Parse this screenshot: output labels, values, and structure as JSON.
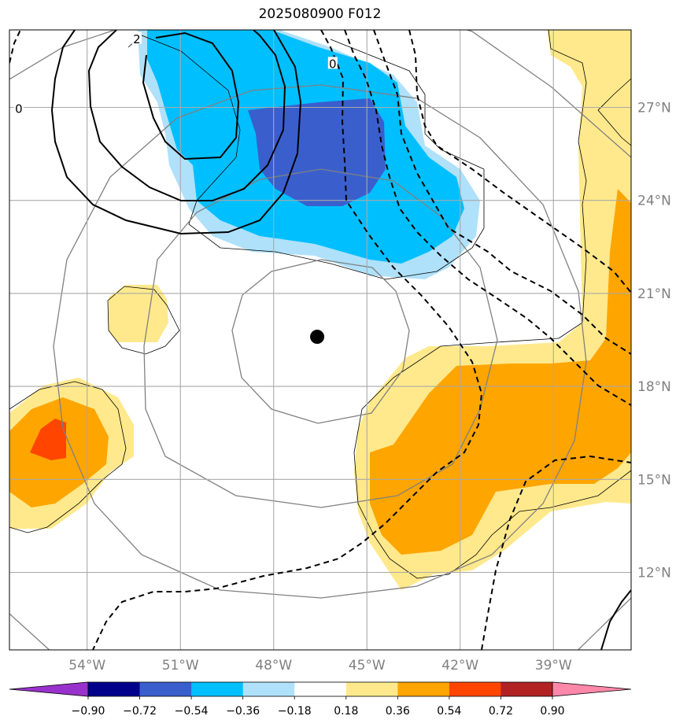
{
  "title": "2025080900 F012",
  "map": {
    "lon_range": [
      -56.5,
      -36.5
    ],
    "lat_range": [
      9.5,
      29.5
    ],
    "lon_ticks": [
      {
        "value": -54,
        "label": "54°W"
      },
      {
        "value": -51,
        "label": "51°W"
      },
      {
        "value": -48,
        "label": "48°W"
      },
      {
        "value": -45,
        "label": "45°W"
      },
      {
        "value": -42,
        "label": "42°W"
      },
      {
        "value": -39,
        "label": "39°W"
      }
    ],
    "lat_ticks": [
      {
        "value": 27,
        "label": "27°N"
      },
      {
        "value": 24,
        "label": "24°N"
      },
      {
        "value": 21,
        "label": "21°N"
      },
      {
        "value": 18,
        "label": "18°N"
      },
      {
        "value": 15,
        "label": "15°N"
      },
      {
        "value": 12,
        "label": "12°N"
      }
    ],
    "grid": true,
    "center_marker": {
      "lon": -46.6,
      "lat": 19.6
    },
    "contour_labels": [
      {
        "text": "2",
        "lon": -52.4,
        "lat": 29.2
      },
      {
        "text": "0",
        "lon": -56.2,
        "lat": 26.95
      },
      {
        "text": "0",
        "lon": -46.1,
        "lat": 28.4
      }
    ]
  },
  "colorbar": {
    "colors": [
      "#9932cc",
      "#00008b",
      "#3a5fcd",
      "#00bfff",
      "#afe1fa",
      "#ffffff",
      "#ffe98c",
      "#ffa500",
      "#ff4500",
      "#b22222",
      "#ff88aa"
    ],
    "labels": [
      "−0.90",
      "−0.72",
      "−0.54",
      "−0.36",
      "−0.18",
      "0.18",
      "0.36",
      "0.54",
      "0.72",
      "0.90"
    ]
  },
  "colors": {
    "grid": "#a9a9a9",
    "range_rings": "#808080",
    "coast_outline": "#000000"
  }
}
